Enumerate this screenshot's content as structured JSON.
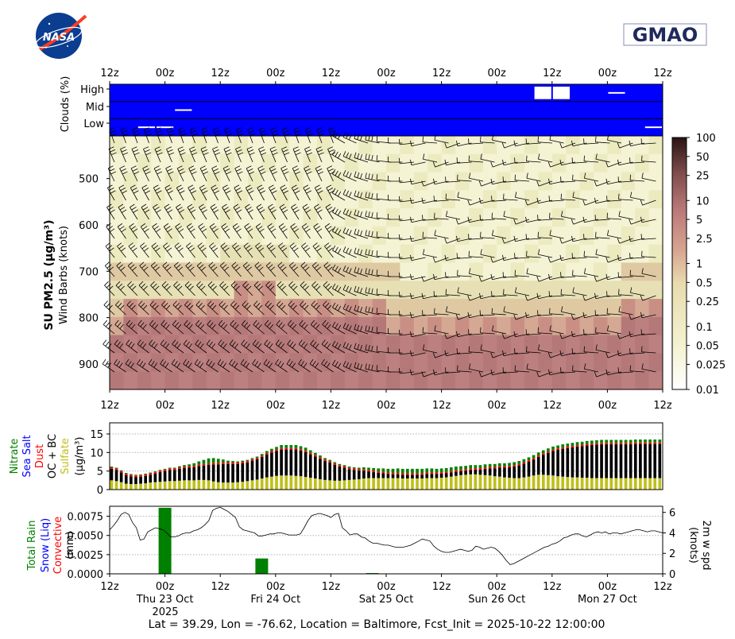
{
  "logos": {
    "left_text": "NASA",
    "right_text": "GMAO"
  },
  "time_ticks": [
    "12z",
    "00z",
    "12z",
    "00z",
    "12z",
    "00z",
    "12z",
    "00z",
    "12z",
    "00z",
    "12z"
  ],
  "date_ticks": [
    "Thu 23 Oct",
    "Fri 24 Oct",
    "Sat 25 Oct",
    "Sun 26 Oct",
    "Mon 27 Oct"
  ],
  "year_label": "2025",
  "footer": "Lat = 39.29, Lon = -76.62, Location = Baltimore, Fcst_Init = 2025-10-22 12:00:00",
  "colors": {
    "cloud": "#0000ff",
    "total_rain": "#008000",
    "snow": "#0000ff",
    "convective": "#ff0000",
    "dust": "#ff0000",
    "oc_bc": "#000000",
    "sulfate": "#bfbf1a",
    "nitrate": "#008000",
    "sea_salt": "#0000ff"
  },
  "clouds": {
    "ylabel": "Clouds (%)",
    "levels": [
      "High",
      "Mid",
      "Low"
    ],
    "gaps_hours": {
      "High": [
        [
          92,
          96
        ],
        [
          96,
          100
        ],
        [
          108,
          112
        ]
      ],
      "Mid": [
        [
          14,
          18
        ]
      ],
      "Low": [
        [
          6,
          10
        ],
        [
          10,
          14
        ],
        [
          116,
          120
        ]
      ]
    }
  },
  "profile": {
    "ylabel_main": "SU PM2.5 (μg/m³)",
    "ylabel_sub": "Wind Barbs (knots)",
    "yticks": [
      "500",
      "600",
      "700",
      "800",
      "900"
    ],
    "ytick_values": [
      500,
      600,
      700,
      800,
      900
    ],
    "pressure_range": [
      408,
      955
    ],
    "colorbar_ticks": [
      "100",
      "50",
      "25",
      "10",
      "5",
      "2.5",
      "1",
      "0.5",
      "0.25",
      "0.1",
      "0.05",
      "0.025",
      "0.01"
    ],
    "colorbar_values": [
      100,
      50,
      25,
      10,
      5,
      2.5,
      1,
      0.5,
      0.25,
      0.1,
      0.05,
      0.025,
      0.01
    ],
    "colorbar_range": [
      0.01,
      100
    ]
  },
  "chart_data": [
    {
      "type": "bar",
      "name": "aerosol species stack",
      "ylabel_species": [
        "Nitrate",
        "Sea Salt",
        "Dust",
        "OC + BC",
        "Sulfate"
      ],
      "yunit": "(μg/m³)",
      "yticks": [
        "0",
        "5",
        "10",
        "15"
      ],
      "ylim": [
        0,
        18
      ],
      "x_hours_step": 3,
      "series": [
        {
          "name": "Sulfate",
          "values": [
            2.5,
            2.3,
            2,
            1.6,
            1.5,
            1.5,
            1.6,
            1.7,
            1.9,
            2,
            2.1,
            2.2,
            2.3,
            2.3,
            2.4,
            2.5,
            2.5,
            2.5,
            2.6,
            2.6,
            2.5,
            2.2,
            2,
            1.9,
            1.9,
            1.9,
            2,
            2.1,
            2.3,
            2.5,
            2.7,
            3,
            3.3,
            3.5,
            3.7,
            3.8,
            3.8,
            3.8,
            3.7,
            3.6,
            3.4,
            3.2,
            3,
            2.8,
            2.6,
            2.5,
            2.4,
            2.4,
            2.5,
            2.6,
            2.7,
            2.8,
            3,
            3.1,
            3.1,
            3.1,
            3.1,
            3.1,
            3.1,
            3.1,
            3,
            3,
            3,
            3,
            3,
            3.1,
            3.1,
            3.1,
            3.2,
            3.3,
            3.5,
            3.7,
            3.9,
            4,
            4.1,
            4.1,
            4,
            3.9,
            3.8,
            3.6,
            3.5,
            3.3,
            3.2,
            3.1,
            3.1,
            3.3,
            3.5,
            3.8,
            4,
            4,
            3.9,
            3.8,
            3.6,
            3.5,
            3.4,
            3.3,
            3.3,
            3.2,
            3.2,
            3.1,
            3.1,
            3.1,
            3.1,
            3.1,
            3.1,
            3.1,
            3.1,
            3.1,
            3.1,
            3.1,
            3.1,
            3.1,
            3.1,
            3.1
          ]
        },
        {
          "name": "OC + BC",
          "values": [
            3.1,
            3,
            2.6,
            2.3,
            2.1,
            1.9,
            1.9,
            2,
            2.1,
            2.3,
            2.6,
            2.8,
            3,
            3,
            3.2,
            3.3,
            3.4,
            3.5,
            3.7,
            3.9,
            4.2,
            4.6,
            4.8,
            5,
            5,
            5,
            4.9,
            5,
            5,
            5.3,
            5.5,
            5.8,
            6.2,
            6.5,
            6.7,
            7,
            7,
            7,
            7.1,
            6.9,
            6.7,
            6.3,
            5.9,
            5.5,
            5.1,
            4.8,
            4.3,
            3.8,
            3.4,
            2.9,
            2.6,
            2.3,
            2.1,
            1.8,
            1.6,
            1.4,
            1.3,
            1.1,
            1,
            1,
            1,
            1,
            1,
            1,
            1,
            1.1,
            1.1,
            1.1,
            1.1,
            1.1,
            1.1,
            1.1,
            1.1,
            1.1,
            1.2,
            1.3,
            1.4,
            1.7,
            1.9,
            2.1,
            2.4,
            2.6,
            2.8,
            3.1,
            3.4,
            3.7,
            4,
            4.3,
            4.8,
            5.4,
            6,
            6.6,
            7.1,
            7.5,
            7.8,
            8.1,
            8.3,
            8.5,
            8.7,
            8.9,
            9,
            9.1,
            9.1,
            9.1,
            9.1,
            9.1,
            9.1,
            9.1,
            9.2,
            9.2,
            9.2,
            9.2,
            9.2,
            9.2
          ]
        },
        {
          "name": "Dust",
          "values": [
            0.4,
            0.4,
            0.4,
            0.4,
            0.4,
            0.4,
            0.4,
            0.4,
            0.4,
            0.4,
            0.4,
            0.4,
            0.4,
            0.4,
            0.4,
            0.4,
            0.4,
            0.4,
            0.4,
            0.4,
            0.4,
            0.4,
            0.4,
            0.4,
            0.4,
            0.4,
            0.4,
            0.4,
            0.4,
            0.4,
            0.4,
            0.4,
            0.4,
            0.4,
            0.4,
            0.4,
            0.4,
            0.4,
            0.4,
            0.4,
            0.4,
            0.4,
            0.4,
            0.4,
            0.4,
            0.4,
            0.4,
            0.4,
            0.4,
            0.4,
            0.4,
            0.4,
            0.4,
            0.4,
            0.4,
            0.4,
            0.4,
            0.4,
            0.4,
            0.4,
            0.4,
            0.4,
            0.4,
            0.4,
            0.4,
            0.4,
            0.4,
            0.4,
            0.4,
            0.4,
            0.4,
            0.4,
            0.4,
            0.4,
            0.4,
            0.4,
            0.4,
            0.4,
            0.4,
            0.4,
            0.4,
            0.4,
            0.4,
            0.4,
            0.4,
            0.4,
            0.4,
            0.4,
            0.4,
            0.4,
            0.4,
            0.4,
            0.4,
            0.4,
            0.4,
            0.4,
            0.4,
            0.4,
            0.4,
            0.4,
            0.4,
            0.4,
            0.4,
            0.4,
            0.4,
            0.4,
            0.4,
            0.4,
            0.4,
            0.4,
            0.4,
            0.4,
            0.4,
            0.4
          ]
        },
        {
          "name": "Nitrate",
          "values": [
            0.2,
            0.2,
            0.2,
            0.2,
            0.2,
            0.2,
            0.2,
            0.2,
            0.2,
            0.2,
            0.2,
            0.2,
            0.2,
            0.2,
            0.3,
            0.4,
            0.5,
            0.7,
            0.9,
            1.1,
            1.3,
            1.3,
            1.1,
            0.8,
            0.5,
            0.4,
            0.3,
            0.3,
            0.3,
            0.3,
            0.3,
            0.4,
            0.5,
            0.6,
            0.7,
            0.8,
            0.8,
            0.8,
            0.8,
            0.8,
            0.8,
            0.7,
            0.6,
            0.5,
            0.4,
            0.3,
            0.3,
            0.3,
            0.3,
            0.3,
            0.3,
            0.4,
            0.5,
            0.6,
            0.7,
            0.8,
            0.9,
            1,
            1.1,
            1.2,
            1.2,
            1.2,
            1.2,
            1.2,
            1.2,
            1.1,
            1.1,
            1,
            1,
            1,
            1,
            1,
            0.9,
            0.9,
            0.9,
            0.8,
            0.8,
            0.8,
            0.8,
            0.8,
            0.8,
            0.8,
            0.8,
            0.8,
            0.8,
            0.8,
            0.8,
            0.8,
            0.8,
            0.8,
            0.8,
            0.8,
            0.8,
            0.8,
            0.8,
            0.8,
            0.8,
            0.8,
            0.8,
            0.8,
            0.8,
            0.8,
            0.8,
            0.8,
            0.8,
            0.8,
            0.8,
            0.8,
            0.8,
            0.8,
            0.8,
            0.8,
            0.8,
            0.8
          ]
        }
      ]
    },
    {
      "type": "bar",
      "name": "precipitation",
      "ylabel_series": [
        "Total Rain",
        "Snow (Liq)",
        "Convective"
      ],
      "yunit": "(mm)",
      "yticks": [
        "0.0000",
        "0.0025",
        "0.0050",
        "0.0075"
      ],
      "ylim": [
        0,
        0.0088
      ],
      "bars": [
        {
          "hour": 12,
          "series": "Total Rain",
          "value": 0.0086
        },
        {
          "hour": 33,
          "series": "Total Rain",
          "value": 0.002
        },
        {
          "hour": 57,
          "series": "Total Rain",
          "value": 0.0001
        }
      ]
    },
    {
      "type": "line",
      "name": "2m wind speed",
      "ylabel": "2m w spd",
      "yunit": "(knots)",
      "yticks": [
        "0",
        "2",
        "4",
        "6"
      ],
      "ylim": [
        0,
        6.6
      ],
      "x_hours_step": 3,
      "values": [
        4.3,
        4.7,
        5.2,
        5.8,
        6,
        5.8,
        5,
        4.5,
        3.3,
        3.4,
        4.1,
        4.3,
        4.5,
        4.4,
        4.3,
        4,
        3.6,
        3.6,
        3.7,
        3.9,
        4,
        4,
        4.2,
        4.3,
        4.5,
        4.8,
        5.2,
        6.2,
        6.4,
        6.5,
        6.3,
        6.1,
        5.8,
        5.5,
        4.6,
        4.3,
        4.2,
        4.1,
        4,
        3.7,
        3.7,
        3.8,
        3.9,
        3.9,
        4,
        4,
        3.9,
        3.8,
        3.8,
        3.8,
        3.9,
        4.5,
        5.2,
        5.7,
        5.8,
        5.9,
        5.8,
        5.7,
        5.5,
        5.8,
        5.9,
        4.5,
        4.2,
        3.8,
        3.9,
        3.9,
        3.6,
        3.5,
        3.2,
        3.0,
        3.0,
        2.9,
        2.8,
        2.8,
        2.7,
        2.6,
        2.6,
        2.6,
        2.7,
        2.8,
        3.0,
        3.2,
        3.4,
        3.3,
        3.2,
        2.7,
        2.4,
        2.2,
        2.1,
        2.1,
        2.2,
        2.3,
        2.4,
        2.3,
        2.2,
        2.3,
        2.7,
        2.6,
        2.4,
        2.5,
        2.6,
        2.5,
        2.2,
        1.8,
        1.3,
        0.9,
        1.0,
        1.2,
        1.4,
        1.6,
        1.8,
        2.0,
        2.2,
        2.4,
        2.6,
        2.7,
        2.9,
        3.0,
        3.2,
        3.5,
        3.6,
        3.8,
        3.9,
        3.9,
        3.7,
        3.6,
        3.8,
        4.0,
        4.1,
        4.0,
        4.1,
        3.9,
        4.0,
        4.0,
        3.9,
        4.0,
        4.1,
        4.2,
        4.3,
        4.3,
        4.2,
        4.1,
        4.2,
        4.2,
        4.1,
        4.0
      ]
    }
  ]
}
